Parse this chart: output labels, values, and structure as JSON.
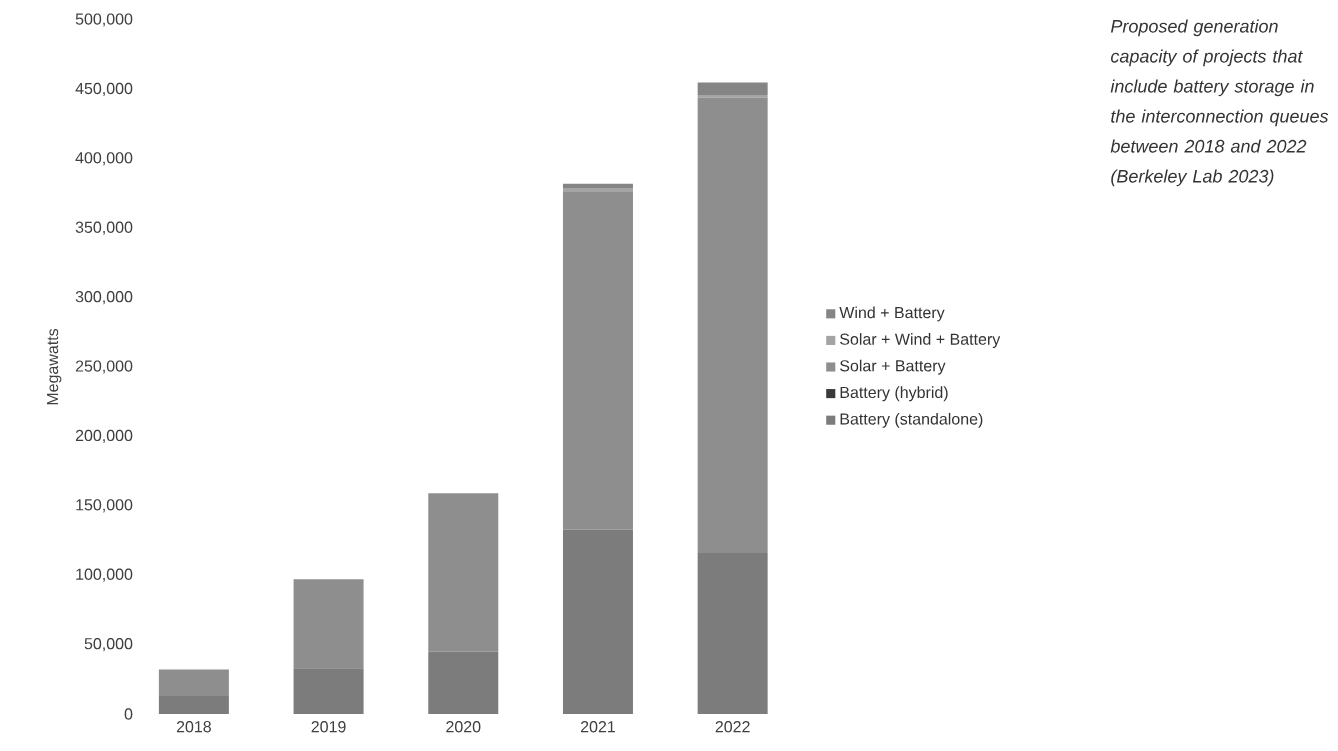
{
  "chart_data": {
    "type": "bar",
    "stacked": true,
    "ylabel": "Megawatts",
    "categories": [
      "2018",
      "2019",
      "2020",
      "2021",
      "2022"
    ],
    "series": [
      {
        "name": "Battery (standalone)",
        "color": "#7c7c7c",
        "values": [
          13000,
          33000,
          45000,
          133000,
          116000
        ]
      },
      {
        "name": "Battery (hybrid)",
        "color": "#3a3a3a",
        "values": [
          0,
          0,
          0,
          0,
          0
        ]
      },
      {
        "name": "Solar + Battery",
        "color": "#8e8e8e",
        "values": [
          19000,
          64000,
          114000,
          243000,
          328000
        ]
      },
      {
        "name": "Solar + Wind + Battery",
        "color": "#a4a4a4",
        "values": [
          0,
          0,
          0,
          3000,
          2000
        ]
      },
      {
        "name": "Wind + Battery",
        "color": "#858585",
        "values": [
          0,
          0,
          0,
          3000,
          9000
        ]
      }
    ],
    "ylim": [
      0,
      500000
    ],
    "yticks": [
      0,
      {
        "value": 50000,
        "label": "50,000"
      },
      {
        "value": 100000,
        "label": "100,000"
      },
      {
        "value": 150000,
        "label": "150,000"
      },
      {
        "value": 200000,
        "label": "200,000"
      },
      {
        "value": 250000,
        "label": "250,000"
      },
      {
        "value": 300000,
        "label": "300,000"
      },
      {
        "value": 350000,
        "label": "350,000"
      },
      {
        "value": 400000,
        "label": "400,000"
      },
      {
        "value": 450000,
        "label": "450,000"
      },
      {
        "value": 500000,
        "label": "500,000"
      }
    ],
    "grid": false,
    "legend": "right",
    "annotations": [
      "Proposed generation capacity of projects that include battery storage in the interconnection queues between 2018 and 2022 (Berkeley Lab 2023)"
    ]
  }
}
